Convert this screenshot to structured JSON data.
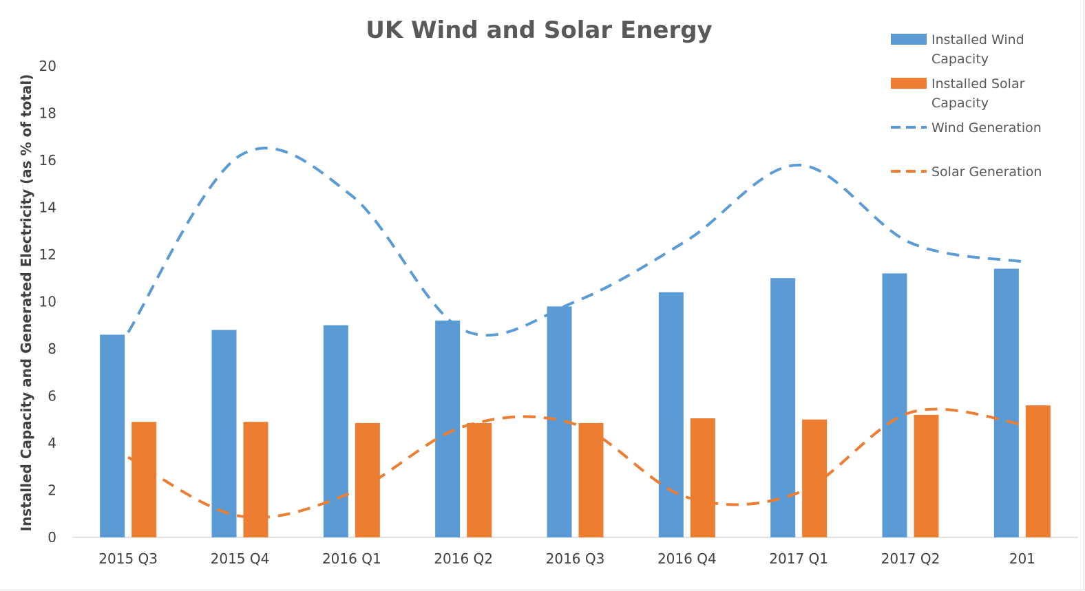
{
  "chart_data": {
    "type": "bar",
    "title": "UK Wind and Solar Energy",
    "xlabel": "",
    "ylabel": "Installed Capacity and Generated Electricity (as % of total)",
    "ylim": [
      0,
      20
    ],
    "yticks": [
      0,
      2,
      4,
      6,
      8,
      10,
      12,
      14,
      16,
      18,
      20
    ],
    "categories": [
      "2015 Q3",
      "2015 Q4",
      "2016 Q1",
      "2016 Q2",
      "2016 Q3",
      "2016 Q4",
      "2017 Q1",
      "2017 Q2",
      "201"
    ],
    "grid": false,
    "legend_position": "top-right",
    "series": [
      {
        "name": "Installed Wind Capacity",
        "kind": "bar",
        "color": "#5b9bd5",
        "values": [
          8.6,
          8.8,
          9.0,
          9.2,
          9.8,
          10.4,
          11.0,
          11.2,
          11.4
        ]
      },
      {
        "name": "Installed Solar Capacity",
        "kind": "bar",
        "color": "#ed7d31",
        "values": [
          4.9,
          4.9,
          4.85,
          4.85,
          4.85,
          5.05,
          5.0,
          5.2,
          5.6
        ]
      },
      {
        "name": "Wind Generation",
        "kind": "line",
        "style": "dashed",
        "color": "#5b9bd5",
        "values": [
          8.7,
          16.2,
          14.5,
          8.8,
          10.0,
          12.6,
          15.8,
          12.5,
          11.7
        ]
      },
      {
        "name": "Solar Generation",
        "kind": "line",
        "style": "dashed",
        "color": "#ed7d31",
        "values": [
          3.4,
          0.9,
          1.9,
          4.7,
          4.8,
          1.7,
          1.9,
          5.3,
          4.8
        ]
      }
    ],
    "legend": {
      "items": [
        {
          "label_lines": [
            "Installed Wind",
            "Capacity"
          ]
        },
        {
          "label_lines": [
            "Installed Solar",
            "Capacity"
          ]
        },
        {
          "label_lines": [
            "Wind Generation"
          ]
        },
        {
          "label_lines": [
            "Solar Generation"
          ]
        }
      ]
    }
  }
}
